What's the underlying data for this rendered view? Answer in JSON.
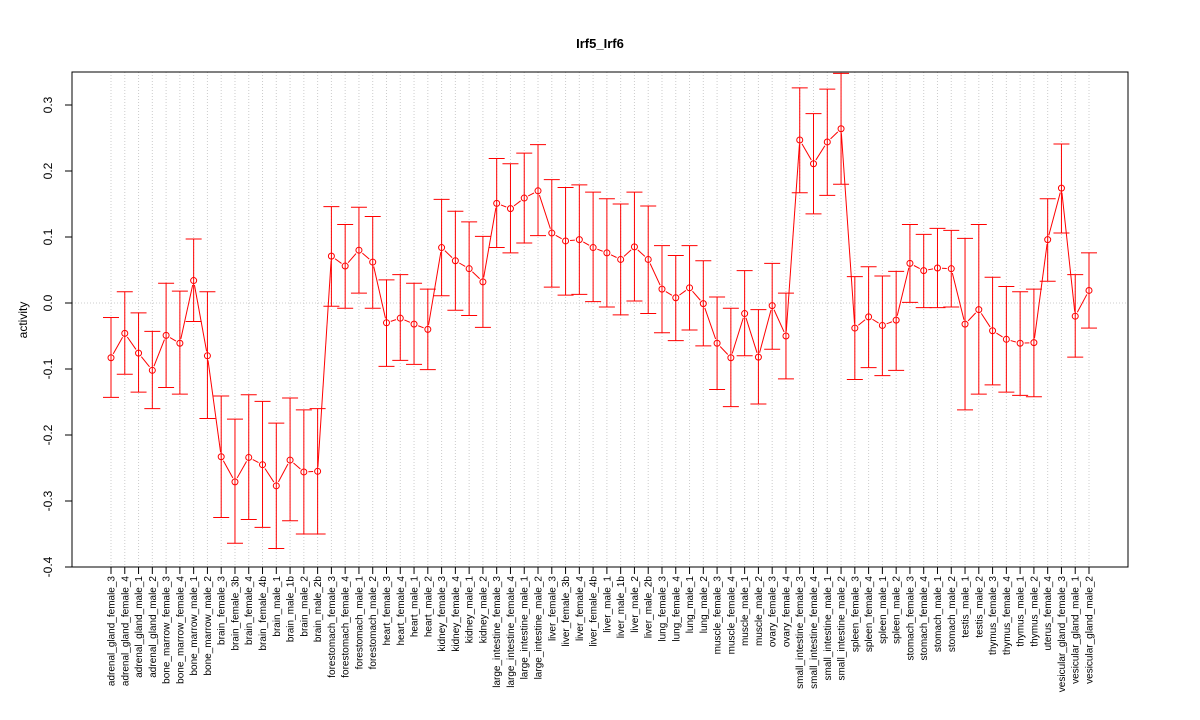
{
  "chart_data": {
    "type": "line",
    "title": "Irf5_Irf6",
    "ylabel": "activity",
    "xlabel": "",
    "ylim": [
      -0.4,
      0.35
    ],
    "yticks": [
      -0.4,
      -0.3,
      -0.2,
      -0.1,
      0.0,
      0.1,
      0.2,
      0.3
    ],
    "ytick_labels": [
      "-0.4",
      "-0.3",
      "-0.2",
      "-0.1",
      "0.0",
      "0.1",
      "0.2",
      "0.3"
    ],
    "grid": true,
    "color": "#ff0000",
    "categories": [
      "adrenal_gland_female_3",
      "adrenal_gland_female_4",
      "adrenal_gland_male_1",
      "adrenal_gland_male_2",
      "bone_marrow_female_3",
      "bone_marrow_female_4",
      "bone_marrow_male_1",
      "bone_marrow_male_2",
      "brain_female_3",
      "brain_female_3b",
      "brain_female_4",
      "brain_female_4b",
      "brain_male_1",
      "brain_male_1b",
      "brain_male_2",
      "brain_male_2b",
      "forestomach_female_3",
      "forestomach_female_4",
      "forestomach_male_1",
      "forestomach_male_2",
      "heart_female_3",
      "heart_female_4",
      "heart_male_1",
      "heart_male_2",
      "kidney_female_3",
      "kidney_female_4",
      "kidney_male_1",
      "kidney_male_2",
      "large_intestine_female_3",
      "large_intestine_female_4",
      "large_intestine_male_1",
      "large_intestine_male_2",
      "liver_female_3",
      "liver_female_3b",
      "liver_female_4",
      "liver_female_4b",
      "liver_male_1",
      "liver_male_1b",
      "liver_male_2",
      "liver_male_2b",
      "lung_female_3",
      "lung_female_4",
      "lung_male_1",
      "lung_male_2",
      "muscle_female_3",
      "muscle_female_4",
      "muscle_male_1",
      "muscle_male_2",
      "ovary_female_3",
      "ovary_female_4",
      "small_intestine_female_3",
      "small_intestine_female_4",
      "small_intestine_male_1",
      "small_intestine_male_2",
      "spleen_female_3",
      "spleen_female_4",
      "spleen_male_1",
      "spleen_male_2",
      "stomach_female_3",
      "stomach_female_4",
      "stomach_male_1",
      "stomach_male_2",
      "testis_male_1",
      "testis_male_2",
      "thymus_female_3",
      "thymus_female_4",
      "thymus_male_1",
      "thymus_male_2",
      "uterus_female_4",
      "vesicular_gland_female_3",
      "vesicular_gland_male_1",
      "vesicular_gland_male_2"
    ],
    "values": [
      -0.083,
      -0.046,
      -0.076,
      -0.102,
      -0.049,
      -0.061,
      0.034,
      -0.08,
      -0.233,
      -0.271,
      -0.234,
      -0.245,
      -0.277,
      -0.238,
      -0.256,
      -0.255,
      0.071,
      0.056,
      0.08,
      0.062,
      -0.03,
      -0.023,
      -0.032,
      -0.04,
      0.084,
      0.064,
      0.052,
      0.032,
      0.151,
      0.143,
      0.159,
      0.17,
      0.106,
      0.094,
      0.096,
      0.084,
      0.076,
      0.066,
      0.085,
      0.066,
      0.021,
      0.008,
      0.023,
      -0.001,
      -0.061,
      -0.083,
      -0.016,
      -0.082,
      -0.004,
      -0.05,
      0.247,
      0.211,
      0.244,
      0.264,
      -0.038,
      -0.021,
      -0.034,
      -0.026,
      0.06,
      0.049,
      0.053,
      0.052,
      -0.032,
      -0.01,
      -0.042,
      -0.055,
      -0.061,
      -0.06,
      0.096,
      0.174,
      -0.02,
      0.019
    ],
    "error_low": [
      -0.143,
      -0.108,
      -0.135,
      -0.16,
      -0.128,
      -0.138,
      -0.028,
      -0.175,
      -0.325,
      -0.364,
      -0.328,
      -0.34,
      -0.372,
      -0.33,
      -0.35,
      -0.35,
      -0.005,
      -0.008,
      0.015,
      -0.008,
      -0.096,
      -0.087,
      -0.093,
      -0.101,
      0.011,
      -0.011,
      -0.019,
      -0.037,
      0.084,
      0.076,
      0.091,
      0.102,
      0.024,
      0.012,
      0.013,
      0.002,
      -0.006,
      -0.018,
      0.003,
      -0.016,
      -0.045,
      -0.057,
      -0.041,
      -0.065,
      -0.131,
      -0.157,
      -0.08,
      -0.153,
      -0.07,
      -0.115,
      0.167,
      0.135,
      0.163,
      0.18,
      -0.116,
      -0.098,
      -0.11,
      -0.102,
      0.001,
      -0.007,
      -0.007,
      -0.006,
      -0.162,
      -0.138,
      -0.124,
      -0.135,
      -0.14,
      -0.142,
      0.033,
      0.106,
      -0.082,
      -0.038
    ],
    "error_high": [
      -0.022,
      0.017,
      -0.015,
      -0.043,
      0.03,
      0.018,
      0.097,
      0.017,
      -0.141,
      -0.176,
      -0.139,
      -0.149,
      -0.182,
      -0.144,
      -0.162,
      -0.16,
      0.146,
      0.119,
      0.145,
      0.131,
      0.035,
      0.043,
      0.03,
      0.021,
      0.157,
      0.139,
      0.123,
      0.101,
      0.219,
      0.211,
      0.227,
      0.24,
      0.187,
      0.175,
      0.179,
      0.168,
      0.158,
      0.15,
      0.168,
      0.147,
      0.087,
      0.072,
      0.087,
      0.064,
      0.009,
      -0.008,
      0.049,
      -0.01,
      0.06,
      0.015,
      0.326,
      0.287,
      0.324,
      0.348,
      0.04,
      0.055,
      0.041,
      0.048,
      0.119,
      0.104,
      0.113,
      0.11,
      0.098,
      0.119,
      0.039,
      0.025,
      0.017,
      0.021,
      0.158,
      0.241,
      0.043,
      0.076
    ]
  }
}
